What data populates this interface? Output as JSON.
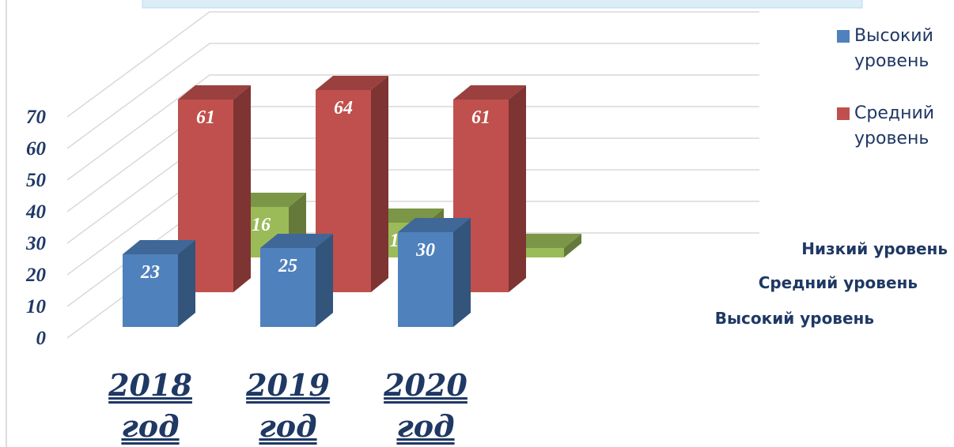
{
  "chart_data": {
    "type": "bar3d",
    "categories": [
      "2018 год",
      "2019 год",
      "2020 год"
    ],
    "series": [
      {
        "name": "Высокий уровень",
        "color": "#4f81bd",
        "values": [
          23,
          25,
          30
        ]
      },
      {
        "name": "Средний уровень",
        "color": "#c0504d",
        "values": [
          61,
          64,
          61
        ]
      },
      {
        "name": "Низкий уровень",
        "color": "#9bbb59",
        "values": [
          16,
          11,
          3
        ]
      }
    ],
    "ylim": [
      0,
      70
    ],
    "yticks": [
      0,
      10,
      20,
      30,
      40,
      50,
      60,
      70
    ],
    "grid": true
  }
}
